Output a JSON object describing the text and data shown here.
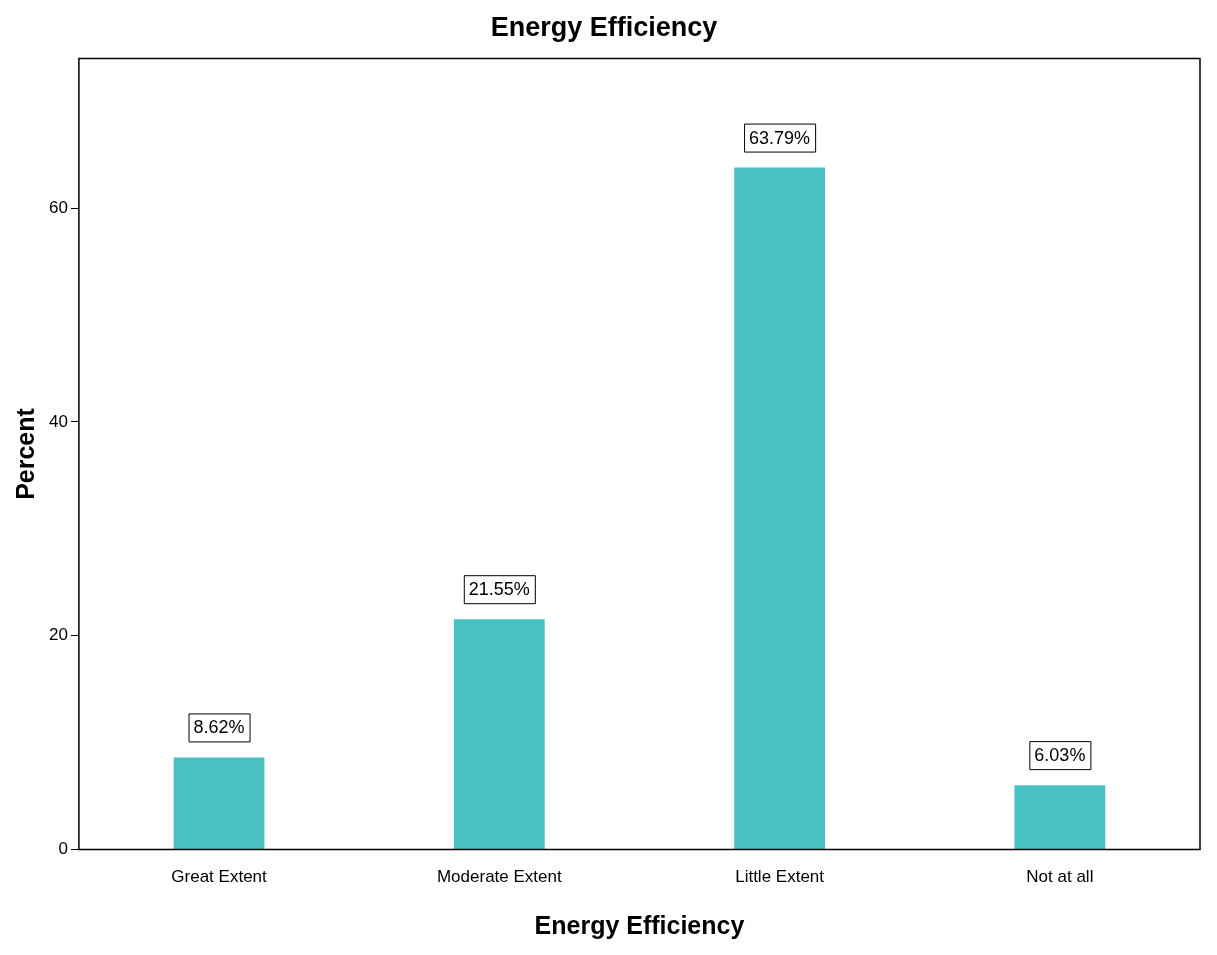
{
  "chart_data": {
    "type": "bar",
    "title": "Energy Efficiency",
    "xlabel": "Energy Efficiency",
    "ylabel": "Percent",
    "categories": [
      "Great Extent",
      "Moderate Extent",
      "Little Extent",
      "Not at all"
    ],
    "values": [
      8.62,
      21.55,
      63.79,
      6.03
    ],
    "value_labels": [
      "8.62%",
      "21.55%",
      "63.79%",
      "6.03%"
    ],
    "color": "#49c1c4",
    "ylim": [
      0,
      74
    ],
    "yticks": [
      0,
      20,
      40,
      60
    ]
  }
}
